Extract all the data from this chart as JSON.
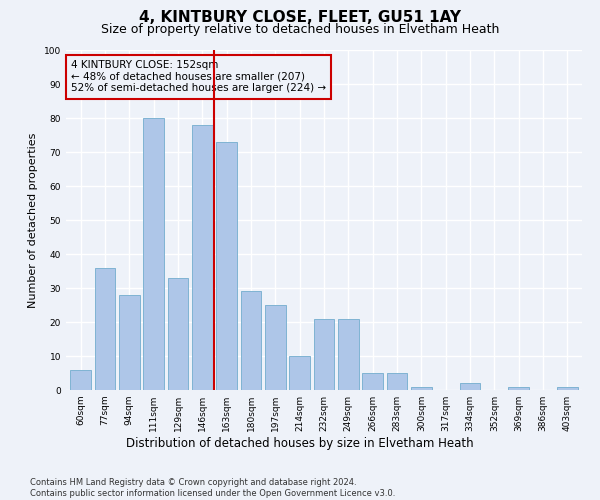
{
  "title1": "4, KINTBURY CLOSE, FLEET, GU51 1AY",
  "title2": "Size of property relative to detached houses in Elvetham Heath",
  "xlabel": "Distribution of detached houses by size in Elvetham Heath",
  "ylabel": "Number of detached properties",
  "categories": [
    "60sqm",
    "77sqm",
    "94sqm",
    "111sqm",
    "129sqm",
    "146sqm",
    "163sqm",
    "180sqm",
    "197sqm",
    "214sqm",
    "232sqm",
    "249sqm",
    "266sqm",
    "283sqm",
    "300sqm",
    "317sqm",
    "334sqm",
    "352sqm",
    "369sqm",
    "386sqm",
    "403sqm"
  ],
  "values": [
    6,
    36,
    28,
    80,
    33,
    78,
    73,
    29,
    25,
    10,
    21,
    21,
    5,
    5,
    1,
    0,
    2,
    0,
    1,
    0,
    1
  ],
  "bar_color": "#aec6e8",
  "bar_edge_color": "#7fb3d3",
  "vline_x": 5.5,
  "vline_color": "#cc0000",
  "ylim": [
    0,
    100
  ],
  "yticks": [
    0,
    10,
    20,
    30,
    40,
    50,
    60,
    70,
    80,
    90,
    100
  ],
  "annotation_box_text": "4 KINTBURY CLOSE: 152sqm\n← 48% of detached houses are smaller (207)\n52% of semi-detached houses are larger (224) →",
  "annotation_box_color": "#cc0000",
  "bg_color": "#eef2f9",
  "grid_color": "#ffffff",
  "footnote": "Contains HM Land Registry data © Crown copyright and database right 2024.\nContains public sector information licensed under the Open Government Licence v3.0.",
  "title_fontsize": 11,
  "subtitle_fontsize": 9,
  "xlabel_fontsize": 8.5,
  "ylabel_fontsize": 8,
  "tick_fontsize": 6.5,
  "annot_fontsize": 7.5,
  "footnote_fontsize": 6
}
